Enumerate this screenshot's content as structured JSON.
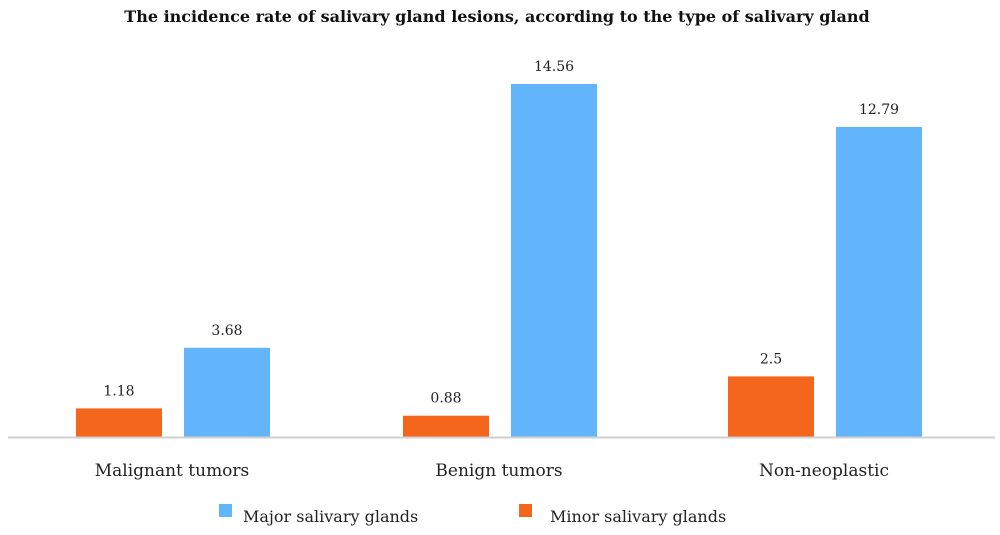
{
  "chart_data": {
    "type": "bar",
    "title": "The incidence rate of salivary gland lesions, according to the type of salivary gland",
    "categories": [
      "Malignant tumors",
      "Benign tumors",
      "Non-neoplastic"
    ],
    "series": [
      {
        "name": "Minor salivary glands",
        "values": [
          1.18,
          0.88,
          2.5
        ],
        "color": "#F4661B"
      },
      {
        "name": "Major salivary glands",
        "values": [
          3.68,
          14.56,
          12.79
        ],
        "color": "#63B5FB"
      }
    ],
    "legend_order": [
      "Major salivary glands",
      "Minor salivary glands"
    ],
    "legend_position": "bottom",
    "ylim": [
      0,
      16
    ],
    "grid": false,
    "baseline_color": "#d0d0d0"
  }
}
